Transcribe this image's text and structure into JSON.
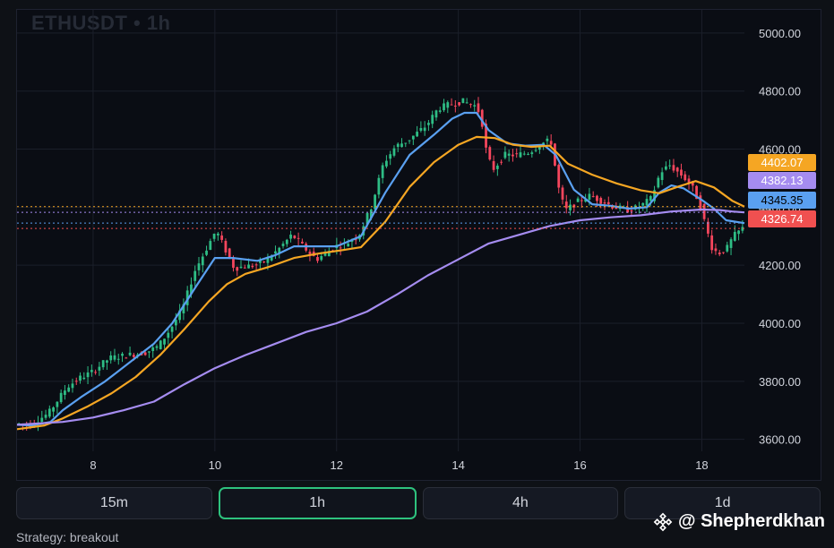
{
  "chart": {
    "watermark": "ETHUSDT • 1h"
  },
  "timeframes": [
    {
      "label": "15m",
      "active": false
    },
    {
      "label": "1h",
      "active": true
    },
    {
      "label": "4h",
      "active": false
    },
    {
      "label": "1d",
      "active": false
    }
  ],
  "strategy_text": "Strategy: breakout",
  "brand": {
    "text": "@ Shepherdkhan",
    "icon": "binance-diamond-icon"
  },
  "colors": {
    "background": "#0a0d14",
    "ema_fast": "#5aa0f0",
    "ema_slow": "#f5a623",
    "ema_long": "#a58cf0",
    "up": "#2ebd85",
    "down": "#f6465d",
    "last_price": "#f05050"
  },
  "chart_data": {
    "type": "candlestick",
    "symbol": "ETHUSDT",
    "interval": "1h",
    "x_ticks": [
      "8",
      "10",
      "12",
      "14",
      "16",
      "18"
    ],
    "x_range": [
      6.75,
      18.7
    ],
    "y_ticks": [
      3600,
      3800,
      4000,
      4200,
      4400,
      4600,
      4800,
      5000
    ],
    "y_tick_labels": [
      "3600.00",
      "3800.00",
      "4000.00",
      "4200.00",
      "4400.00",
      "4600.00",
      "4800.00",
      "5000.00"
    ],
    "ylim": [
      3460,
      5080
    ],
    "grid": true,
    "price_labels": [
      {
        "label": "4402.07",
        "value": 4402.07,
        "color": "#f5a623",
        "text_color": "#ffffff"
      },
      {
        "label": "4382.13",
        "value": 4382.13,
        "color": "#a58cf0",
        "text_color": "#ffffff"
      },
      {
        "label": "4345.35",
        "value": 4345.35,
        "color": "#5aa0f0",
        "text_color": "#000000"
      },
      {
        "label": "4326.74",
        "value": 4326.74,
        "color": "#f05050",
        "text_color": "#ffffff"
      }
    ],
    "series": [
      {
        "key": "ema_fast",
        "color": "#5aa0f0",
        "points": [
          [
            6.75,
            3650
          ],
          [
            7.0,
            3648
          ],
          [
            7.3,
            3660
          ],
          [
            7.5,
            3700
          ],
          [
            7.8,
            3745
          ],
          [
            8.2,
            3800
          ],
          [
            8.6,
            3865
          ],
          [
            9.0,
            3930
          ],
          [
            9.3,
            4000
          ],
          [
            9.7,
            4130
          ],
          [
            10.0,
            4225
          ],
          [
            10.3,
            4225
          ],
          [
            10.7,
            4215
          ],
          [
            11.0,
            4235
          ],
          [
            11.3,
            4265
          ],
          [
            11.6,
            4265
          ],
          [
            12.0,
            4265
          ],
          [
            12.4,
            4300
          ],
          [
            12.8,
            4450
          ],
          [
            13.2,
            4580
          ],
          [
            13.6,
            4650
          ],
          [
            13.9,
            4705
          ],
          [
            14.1,
            4725
          ],
          [
            14.3,
            4725
          ],
          [
            14.5,
            4665
          ],
          [
            14.8,
            4620
          ],
          [
            15.1,
            4612
          ],
          [
            15.4,
            4615
          ],
          [
            15.6,
            4580
          ],
          [
            15.9,
            4460
          ],
          [
            16.2,
            4410
          ],
          [
            16.5,
            4405
          ],
          [
            16.8,
            4395
          ],
          [
            17.1,
            4400
          ],
          [
            17.3,
            4450
          ],
          [
            17.5,
            4475
          ],
          [
            17.7,
            4465
          ],
          [
            18.0,
            4425
          ],
          [
            18.2,
            4395
          ],
          [
            18.4,
            4355
          ],
          [
            18.7,
            4345
          ]
        ]
      },
      {
        "key": "ema_slow",
        "color": "#f5a623",
        "points": [
          [
            6.75,
            3635
          ],
          [
            7.2,
            3648
          ],
          [
            7.5,
            3672
          ],
          [
            7.9,
            3712
          ],
          [
            8.3,
            3758
          ],
          [
            8.7,
            3815
          ],
          [
            9.1,
            3890
          ],
          [
            9.5,
            3980
          ],
          [
            9.9,
            4075
          ],
          [
            10.2,
            4135
          ],
          [
            10.5,
            4170
          ],
          [
            10.9,
            4195
          ],
          [
            11.3,
            4225
          ],
          [
            11.7,
            4240
          ],
          [
            12.1,
            4252
          ],
          [
            12.4,
            4262
          ],
          [
            12.8,
            4350
          ],
          [
            13.2,
            4470
          ],
          [
            13.6,
            4555
          ],
          [
            14.0,
            4615
          ],
          [
            14.3,
            4642
          ],
          [
            14.6,
            4638
          ],
          [
            14.9,
            4615
          ],
          [
            15.2,
            4608
          ],
          [
            15.5,
            4612
          ],
          [
            15.8,
            4550
          ],
          [
            16.2,
            4512
          ],
          [
            16.6,
            4482
          ],
          [
            17.0,
            4458
          ],
          [
            17.3,
            4448
          ],
          [
            17.6,
            4470
          ],
          [
            17.9,
            4490
          ],
          [
            18.2,
            4468
          ],
          [
            18.5,
            4422
          ],
          [
            18.7,
            4402
          ]
        ]
      },
      {
        "key": "ema_long",
        "color": "#a58cf0",
        "points": [
          [
            6.75,
            3650
          ],
          [
            7.5,
            3660
          ],
          [
            8.0,
            3675
          ],
          [
            8.5,
            3700
          ],
          [
            9.0,
            3730
          ],
          [
            9.5,
            3790
          ],
          [
            10.0,
            3845
          ],
          [
            10.5,
            3890
          ],
          [
            11.0,
            3930
          ],
          [
            11.5,
            3970
          ],
          [
            12.0,
            4000
          ],
          [
            12.5,
            4040
          ],
          [
            13.0,
            4100
          ],
          [
            13.5,
            4165
          ],
          [
            14.0,
            4220
          ],
          [
            14.5,
            4275
          ],
          [
            15.0,
            4305
          ],
          [
            15.5,
            4335
          ],
          [
            16.0,
            4355
          ],
          [
            16.5,
            4365
          ],
          [
            17.0,
            4372
          ],
          [
            17.5,
            4385
          ],
          [
            18.0,
            4392
          ],
          [
            18.3,
            4390
          ],
          [
            18.5,
            4385
          ],
          [
            18.7,
            4382
          ]
        ]
      }
    ],
    "candles": {
      "anchors": [
        [
          6.75,
          3655
        ],
        [
          7.0,
          3650
        ],
        [
          7.3,
          3690
        ],
        [
          7.6,
          3780
        ],
        [
          7.8,
          3810
        ],
        [
          8.0,
          3830
        ],
        [
          8.3,
          3880
        ],
        [
          8.6,
          3890
        ],
        [
          8.9,
          3900
        ],
        [
          9.1,
          3920
        ],
        [
          9.3,
          3980
        ],
        [
          9.5,
          4050
        ],
        [
          9.7,
          4180
        ],
        [
          9.9,
          4260
        ],
        [
          10.05,
          4320
        ],
        [
          10.2,
          4255
        ],
        [
          10.35,
          4190
        ],
        [
          10.5,
          4195
        ],
        [
          10.7,
          4200
        ],
        [
          10.9,
          4220
        ],
        [
          11.1,
          4260
        ],
        [
          11.3,
          4305
        ],
        [
          11.5,
          4260
        ],
        [
          11.7,
          4220
        ],
        [
          11.85,
          4240
        ],
        [
          12.0,
          4265
        ],
        [
          12.2,
          4275
        ],
        [
          12.4,
          4305
        ],
        [
          12.6,
          4400
        ],
        [
          12.8,
          4550
        ],
        [
          13.0,
          4610
        ],
        [
          13.2,
          4630
        ],
        [
          13.5,
          4680
        ],
        [
          13.7,
          4740
        ],
        [
          13.9,
          4755
        ],
        [
          14.1,
          4765
        ],
        [
          14.3,
          4750
        ],
        [
          14.4,
          4720
        ],
        [
          14.5,
          4580
        ],
        [
          14.6,
          4530
        ],
        [
          14.8,
          4580
        ],
        [
          15.0,
          4580
        ],
        [
          15.2,
          4590
        ],
        [
          15.4,
          4620
        ],
        [
          15.55,
          4630
        ],
        [
          15.7,
          4440
        ],
        [
          15.8,
          4390
        ],
        [
          16.0,
          4420
        ],
        [
          16.2,
          4440
        ],
        [
          16.4,
          4420
        ],
        [
          16.6,
          4400
        ],
        [
          16.8,
          4390
        ],
        [
          17.0,
          4400
        ],
        [
          17.2,
          4430
        ],
        [
          17.35,
          4520
        ],
        [
          17.5,
          4545
        ],
        [
          17.7,
          4510
        ],
        [
          17.85,
          4480
        ],
        [
          18.0,
          4410
        ],
        [
          18.1,
          4330
        ],
        [
          18.2,
          4260
        ],
        [
          18.3,
          4240
        ],
        [
          18.45,
          4260
        ],
        [
          18.55,
          4300
        ],
        [
          18.7,
          4327
        ]
      ],
      "count": 190,
      "seed": 7
    }
  }
}
